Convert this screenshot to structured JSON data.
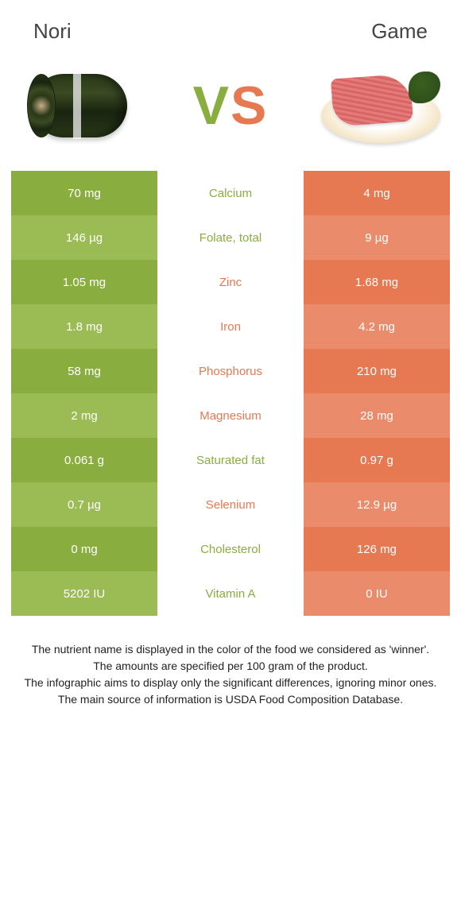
{
  "header": {
    "left_title": "Nori",
    "right_title": "Game",
    "vs_v": "V",
    "vs_s": "S"
  },
  "colors": {
    "green_primary": "#8aad3f",
    "green_alt": "#9bbb55",
    "orange_primary": "#e67852",
    "orange_alt": "#ea8c6c",
    "text_body": "#222222"
  },
  "nutrients": [
    {
      "left": "70 mg",
      "label": "Calcium",
      "right": "4 mg",
      "winner": "left"
    },
    {
      "left": "146 µg",
      "label": "Folate, total",
      "right": "9 µg",
      "winner": "left"
    },
    {
      "left": "1.05 mg",
      "label": "Zinc",
      "right": "1.68 mg",
      "winner": "right"
    },
    {
      "left": "1.8 mg",
      "label": "Iron",
      "right": "4.2 mg",
      "winner": "right"
    },
    {
      "left": "58 mg",
      "label": "Phosphorus",
      "right": "210 mg",
      "winner": "right"
    },
    {
      "left": "2 mg",
      "label": "Magnesium",
      "right": "28 mg",
      "winner": "right"
    },
    {
      "left": "0.061 g",
      "label": "Saturated fat",
      "right": "0.97 g",
      "winner": "left"
    },
    {
      "left": "0.7 µg",
      "label": "Selenium",
      "right": "12.9 µg",
      "winner": "right"
    },
    {
      "left": "0 mg",
      "label": "Cholesterol",
      "right": "126 mg",
      "winner": "left"
    },
    {
      "left": "5202 IU",
      "label": "Vitamin A",
      "right": "0 IU",
      "winner": "left"
    }
  ],
  "footer": {
    "line1": "The nutrient name is displayed in the color of the food we considered as 'winner'.",
    "line2": "The amounts are specified per 100 gram of the product.",
    "line3": "The infographic aims to display only the significant differences, ignoring minor ones.",
    "line4": "The main source of information is USDA Food Composition Database."
  }
}
